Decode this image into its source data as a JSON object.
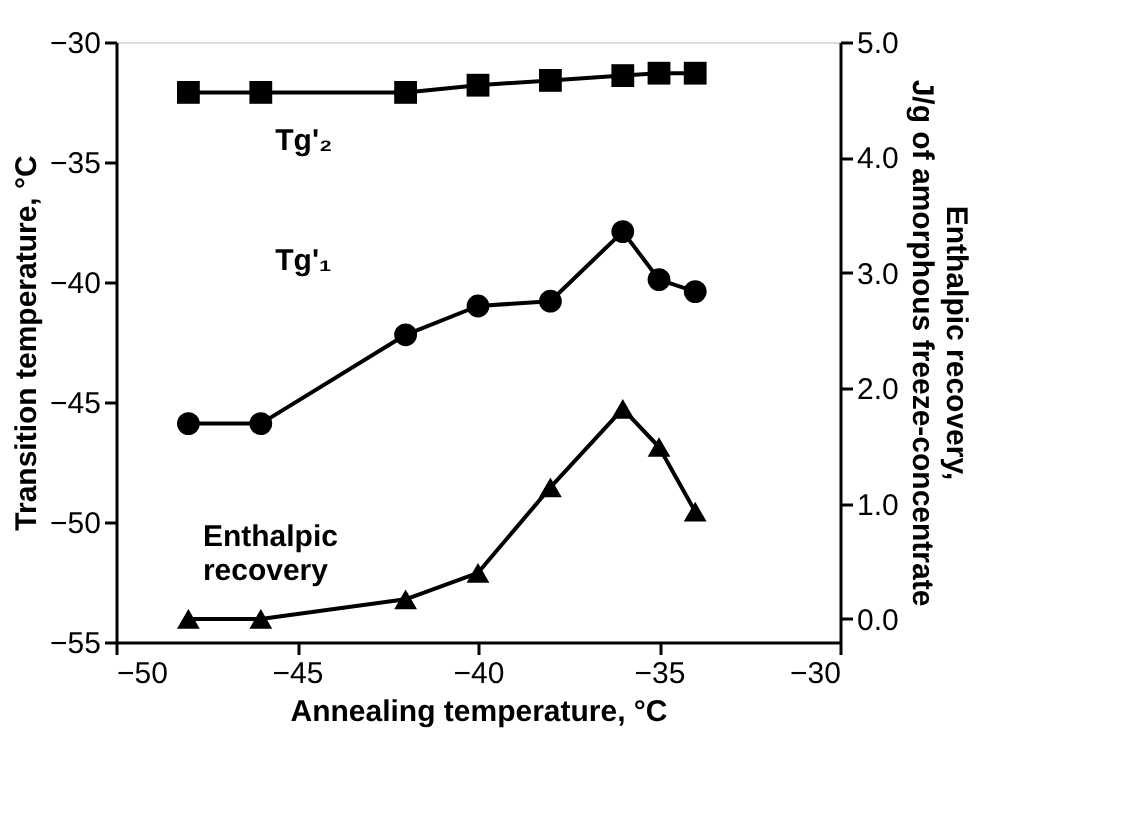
{
  "chart_data": {
    "type": "line",
    "xlabel": "Annealing temperature, °C",
    "ylabel": "Transition temperature, °C",
    "y2label": "Enthalpic recovery,\nJ/g of amorphous freeze-concentrate",
    "x": [
      -48,
      -46,
      -42,
      -40,
      -38,
      -36,
      -35,
      -34
    ],
    "series": [
      {
        "color": "#000000",
        "marker": "square",
        "values": [
          -32.1,
          -32.1,
          -32.1,
          -31.8,
          -31.6,
          -31.4,
          -31.3,
          -31.3
        ]
      },
      {
        "color": "#000000",
        "marker": "circle",
        "values": [
          -45.9,
          -45.9,
          -42.2,
          -41.0,
          -40.8,
          -37.9,
          -39.9,
          -40.4
        ]
      },
      {
        "color": "#000000",
        "marker": "triangle",
        "axis": "y2",
        "values": [
          0.0,
          0.0,
          0.17,
          0.4,
          1.14,
          1.82,
          1.49,
          0.93
        ]
      }
    ],
    "annotations": [
      "Tg'₂",
      "Tg'₁",
      "Enthalpic recovery"
    ],
    "xlim": [
      -50,
      -30
    ],
    "xticks": [
      -50,
      -45,
      -40,
      -35,
      -30
    ],
    "ylim": [
      -55,
      -30
    ],
    "yticks": [
      -55,
      -50,
      -45,
      -40,
      -35,
      -30
    ],
    "y2lim": [
      -0.2,
      5.0
    ],
    "y2ticks": [
      {
        "value": 0,
        "label": "0.0"
      },
      {
        "value": 1,
        "label": "1.0"
      },
      {
        "value": 2,
        "label": "2.0"
      },
      {
        "value": 3,
        "label": "3.0"
      },
      {
        "value": 4,
        "label": "4.0"
      },
      {
        "value": 5,
        "label": "5.0"
      }
    ],
    "grid": false,
    "line_style": "solid"
  }
}
